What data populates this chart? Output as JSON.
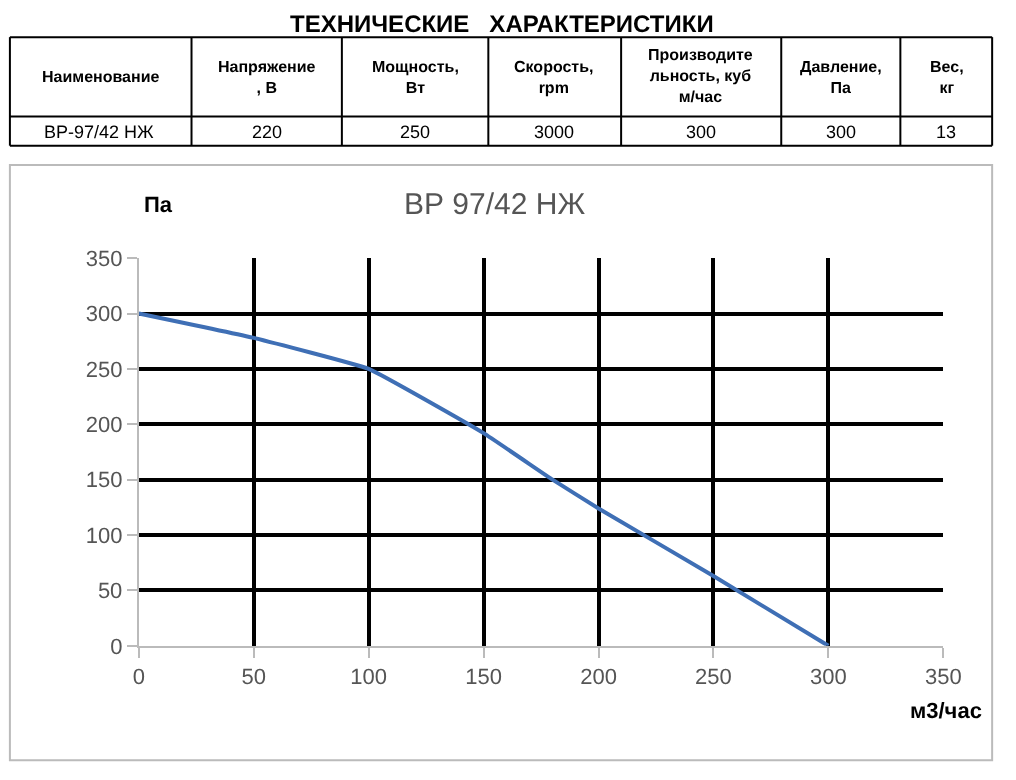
{
  "chart_data": [
    {
      "type": "other",
      "title": "ТЕХНИЧЕСКИЕ   ХАРАКТЕРИСТИКИ",
      "categories": [
        "Наименование",
        "Напряжение\n, В",
        "Мощность,\nВт",
        "Скорость,\nrpm",
        "Производите\nльность, куб\nм/час",
        "Давление,\nПа",
        "Вес,\nкг"
      ],
      "annotations": [
        "ВР-97/42 НЖ",
        "220",
        "250",
        "3000",
        "300",
        "300",
        "13"
      ]
    },
    {
      "type": "line",
      "title": "ВР 97/42 НЖ",
      "xlabel": "м3/час",
      "ylabel": "Па",
      "x": [
        0,
        50,
        100,
        150,
        180,
        200,
        250,
        300
      ],
      "series": [
        {
          "color": "#3f6fb5",
          "values": [
            300,
            278,
            250,
            192,
            150,
            124,
            63,
            0
          ]
        }
      ],
      "xlim": [
        0,
        350
      ],
      "xticks": [
        0,
        50,
        100,
        150,
        200,
        250,
        300,
        350
      ],
      "ylim": [
        0,
        350
      ],
      "yticks": [
        0,
        50,
        100,
        150,
        200,
        250,
        300,
        350
      ],
      "grid": true,
      "marker": "none",
      "line_style": "solid"
    }
  ]
}
